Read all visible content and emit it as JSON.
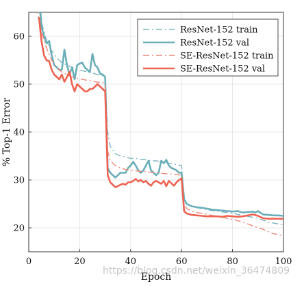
{
  "watermark": "https://blog.csdn.net/weixin_36474809",
  "chart_data": {
    "type": "line",
    "title": "",
    "xlabel": "Epoch",
    "ylabel": "% Top-1 Error",
    "xlim": [
      0,
      100
    ],
    "ylim": [
      15,
      65
    ],
    "xticks": [
      0,
      20,
      40,
      60,
      80,
      100
    ],
    "yticks": [
      20,
      30,
      40,
      50,
      60
    ],
    "grid": true,
    "legend_position": "top-right",
    "series": [
      {
        "name": "ResNet-152 train",
        "style": "dashdot",
        "color": "#7bb6bf",
        "x": [
          3,
          5,
          7,
          9,
          11,
          13,
          15,
          17,
          19,
          21,
          23,
          25,
          27,
          29,
          30,
          31,
          32,
          34,
          36,
          38,
          40,
          42,
          44,
          46,
          48,
          50,
          52,
          54,
          56,
          58,
          60,
          61,
          62,
          64,
          66,
          68,
          70,
          72,
          74,
          76,
          78,
          80,
          82,
          84,
          86,
          88,
          90,
          92,
          94,
          96,
          98,
          100
        ],
        "y": [
          68,
          63,
          59,
          57,
          55.5,
          54.5,
          54,
          53.5,
          53,
          52.8,
          52.6,
          52.3,
          52,
          51.8,
          51.5,
          40,
          37,
          35.5,
          35,
          34.8,
          34.5,
          34.5,
          34.3,
          34.2,
          34,
          34,
          33.8,
          33.6,
          33.4,
          33.2,
          33,
          26,
          25,
          24.5,
          24.2,
          24,
          23.8,
          23.6,
          23.5,
          23.3,
          23.2,
          23.1,
          22.8,
          22.6,
          22.4,
          22.2,
          22,
          21.6,
          21.2,
          21,
          20.8,
          20.6
        ]
      },
      {
        "name": "ResNet-152 val",
        "style": "solid",
        "color": "#6aaeb8",
        "x": [
          4,
          5,
          6,
          7,
          8,
          9,
          10,
          11,
          12,
          13,
          14,
          15,
          16,
          17,
          18,
          19,
          20,
          21,
          22,
          23,
          24,
          25,
          26,
          27,
          28,
          29,
          30,
          31,
          32,
          33,
          34,
          35,
          36,
          37,
          38,
          39,
          40,
          41,
          42,
          43,
          44,
          45,
          46,
          47,
          48,
          49,
          50,
          51,
          52,
          53,
          54,
          55,
          56,
          57,
          58,
          59,
          60,
          61,
          62,
          64,
          66,
          68,
          70,
          72,
          74,
          76,
          78,
          80,
          82,
          84,
          86,
          88,
          89,
          90,
          92,
          94,
          96,
          98,
          100
        ],
        "y": [
          70,
          62,
          60,
          58.5,
          59,
          56,
          54,
          53.5,
          53,
          53,
          57.2,
          54,
          52,
          53.5,
          51,
          54,
          54.3,
          54.5,
          53.5,
          53,
          52.5,
          56.3,
          54,
          53.5,
          52.2,
          52,
          51.5,
          32.5,
          31.5,
          31,
          30.5,
          31,
          31.5,
          31.5,
          31.5,
          32.5,
          33,
          33.8,
          33,
          32,
          31.5,
          32,
          33,
          34,
          32,
          31.5,
          31,
          31.5,
          34,
          33.5,
          34.2,
          33,
          32.5,
          32.3,
          32,
          31.5,
          31.5,
          26,
          25,
          24.5,
          24.3,
          24.2,
          24,
          23.8,
          23.7,
          23.6,
          23.5,
          23.4,
          23.5,
          23.2,
          23.3,
          23.4,
          23.2,
          23.5,
          22.8,
          22.7,
          22.6,
          22.6,
          22.5
        ]
      },
      {
        "name": "SE-ResNet-152 train",
        "style": "dashdot",
        "color": "#ef8676",
        "x": [
          3,
          5,
          7,
          9,
          11,
          13,
          15,
          17,
          19,
          21,
          23,
          25,
          27,
          29,
          30,
          31,
          32,
          34,
          36,
          38,
          40,
          42,
          44,
          46,
          48,
          50,
          52,
          54,
          56,
          58,
          60,
          61,
          62,
          64,
          66,
          68,
          70,
          72,
          74,
          76,
          78,
          80,
          82,
          84,
          86,
          88,
          90,
          92,
          94,
          96,
          98,
          100
        ],
        "y": [
          66,
          61,
          57.5,
          55,
          53.5,
          52.5,
          52,
          51.5,
          51.2,
          51,
          50.8,
          50.6,
          50.4,
          50.3,
          50,
          36,
          34,
          33,
          32.5,
          32.2,
          32,
          31.9,
          31.8,
          31.7,
          31.6,
          31.5,
          31.4,
          31.3,
          31.2,
          31.1,
          31,
          25,
          24,
          23.5,
          23.2,
          23,
          22.8,
          22.6,
          22.4,
          22.2,
          22,
          21.8,
          21.5,
          21.2,
          20.8,
          20.4,
          20,
          19.7,
          19.2,
          18.8,
          18.6,
          18.3
        ]
      },
      {
        "name": "SE-ResNet-152 val",
        "style": "solid",
        "color": "#ee6352",
        "x": [
          4,
          5,
          6,
          7,
          8,
          9,
          10,
          11,
          12,
          13,
          14,
          15,
          16,
          17,
          18,
          19,
          20,
          21,
          22,
          23,
          24,
          25,
          26,
          27,
          28,
          29,
          30,
          31,
          32,
          33,
          34,
          35,
          36,
          37,
          38,
          39,
          40,
          41,
          42,
          43,
          44,
          45,
          46,
          47,
          48,
          49,
          50,
          51,
          52,
          53,
          54,
          55,
          56,
          57,
          58,
          59,
          60,
          61,
          62,
          64,
          66,
          68,
          70,
          72,
          74,
          76,
          78,
          80,
          82,
          84,
          86,
          88,
          90,
          92,
          94,
          96,
          98,
          100
        ],
        "y": [
          64,
          59,
          56,
          55,
          54.8,
          53,
          52,
          51.5,
          51,
          52,
          50.5,
          51.5,
          52.6,
          50,
          48.5,
          50,
          49.5,
          49,
          48.5,
          48.5,
          49,
          49,
          49.5,
          50,
          49.5,
          49,
          48.5,
          31,
          29.5,
          29,
          28.5,
          28.7,
          29,
          29.2,
          29,
          29.5,
          29.5,
          29.8,
          30.2,
          29.7,
          30,
          29.5,
          29.8,
          29.2,
          28.8,
          29.5,
          29.8,
          29.5,
          29.2,
          29.8,
          28.7,
          29.8,
          29.3,
          28.8,
          29.5,
          30,
          30.3,
          23.5,
          23,
          22.7,
          22.6,
          22.5,
          22.4,
          22.4,
          22.4,
          22.3,
          22.5,
          22.4,
          22.3,
          22.4,
          22.6,
          22.8,
          22.5,
          22,
          21.9,
          21.9,
          21.9,
          21.9
        ]
      }
    ]
  }
}
